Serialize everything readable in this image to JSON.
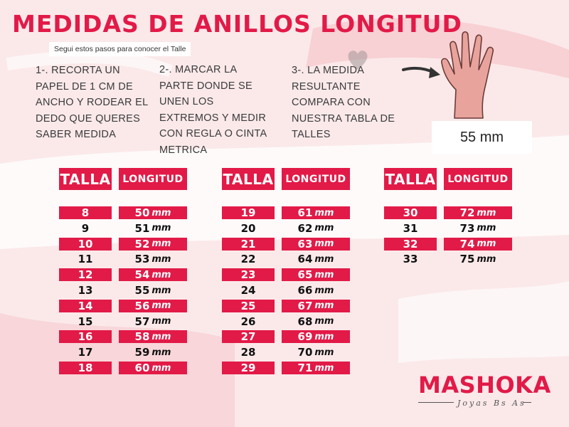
{
  "title": "MEDIDAS DE ANILLOS LONGITUD",
  "subtitle": "Segui estos pasos para conocer el Talle",
  "steps": [
    {
      "lines": [
        "1-. RECORTA  UN",
        "PAPEL DE 1 CM DE",
        "ANCHO Y RODEAR EL",
        "DEDO QUE QUERES",
        "SABER MEDIDA"
      ]
    },
    {
      "lines": [
        "2-. MARCAR LA",
        "PARTE DONDE SE",
        "UNEN LOS",
        "EXTREMOS Y MEDIR",
        "CON REGLA O CINTA",
        "METRICA"
      ]
    },
    {
      "lines": [
        "3-. LA MEDIDA",
        "RESULTANTE",
        "COMPARA CON",
        "NUESTRA TABLA DE",
        "TALLES"
      ]
    }
  ],
  "example_measure": "55 mm",
  "headers": {
    "talla": "TALLA",
    "longitud": "LONGITUD"
  },
  "unit": "mm",
  "tables": [
    {
      "rows": [
        {
          "talla": "8",
          "longitud": "50"
        },
        {
          "talla": "9",
          "longitud": "51"
        },
        {
          "talla": "10",
          "longitud": "52"
        },
        {
          "talla": "11",
          "longitud": "53"
        },
        {
          "talla": "12",
          "longitud": "54"
        },
        {
          "talla": "13",
          "longitud": "55"
        },
        {
          "talla": "14",
          "longitud": "56"
        },
        {
          "talla": "15",
          "longitud": "57"
        },
        {
          "talla": "16",
          "longitud": "58"
        },
        {
          "talla": "17",
          "longitud": "59"
        },
        {
          "talla": "18",
          "longitud": "60"
        }
      ]
    },
    {
      "rows": [
        {
          "talla": "19",
          "longitud": "61"
        },
        {
          "talla": "20",
          "longitud": "62"
        },
        {
          "talla": "21",
          "longitud": "63"
        },
        {
          "talla": "22",
          "longitud": "64"
        },
        {
          "talla": "23",
          "longitud": "65"
        },
        {
          "talla": "24",
          "longitud": "66"
        },
        {
          "talla": "25",
          "longitud": "67"
        },
        {
          "talla": "26",
          "longitud": "68"
        },
        {
          "talla": "27",
          "longitud": "69"
        },
        {
          "talla": "28",
          "longitud": "70"
        },
        {
          "talla": "29",
          "longitud": "71"
        }
      ]
    },
    {
      "rows": [
        {
          "talla": "30",
          "longitud": "72"
        },
        {
          "talla": "31",
          "longitud": "73"
        },
        {
          "talla": "32",
          "longitud": "74"
        },
        {
          "talla": "33",
          "longitud": "75"
        }
      ]
    }
  ],
  "brand": {
    "name": "MASHOKA",
    "tagline": "Joyas Bs As"
  },
  "colors": {
    "accent": "#e21a47",
    "background": "#fbe9ea",
    "hand": "#e9a39d"
  },
  "icons": [
    "hand-icon",
    "arrow-icon",
    "heart-icon"
  ]
}
